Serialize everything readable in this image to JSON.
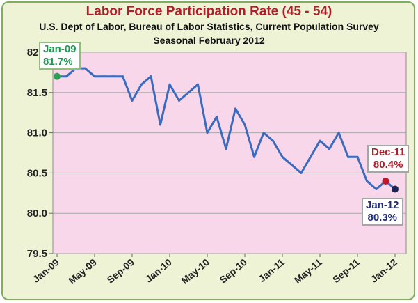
{
  "chart_data": {
    "type": "line",
    "title": "Labor Force Participation Rate  (45 - 54)",
    "subtitle": "U.S. Dept of Labor, Bureau of Labor Statistics, Current Population Survey",
    "subtitle2": "Seasonal February 2012",
    "xlabel": "",
    "ylabel": "",
    "ylim": [
      79.5,
      82.0
    ],
    "yticks": [
      "79.5",
      "80.0",
      "80.5",
      "81.0",
      "81.5",
      "82.0"
    ],
    "xticks": [
      "Jan-09",
      "May-09",
      "Sep-09",
      "Jan-10",
      "May-10",
      "Sep-10",
      "Jan-11",
      "May-11",
      "Sep-11",
      "Jan-12"
    ],
    "grid": true,
    "legend": "none",
    "colors": {
      "line": "#3a6bbf",
      "plot_bg": "#f9d7ea",
      "frame_bg": "#eef3d6",
      "start_marker": "#2aa14e",
      "dec_marker": "#c0182a",
      "jan_marker": "#1c2452"
    },
    "x": [
      "Jan-09",
      "Feb-09",
      "Mar-09",
      "Apr-09",
      "May-09",
      "Jun-09",
      "Jul-09",
      "Aug-09",
      "Sep-09",
      "Oct-09",
      "Nov-09",
      "Dec-09",
      "Jan-10",
      "Feb-10",
      "Mar-10",
      "Apr-10",
      "May-10",
      "Jun-10",
      "Jul-10",
      "Aug-10",
      "Sep-10",
      "Oct-10",
      "Nov-10",
      "Dec-10",
      "Jan-11",
      "Feb-11",
      "Mar-11",
      "Apr-11",
      "May-11",
      "Jun-11",
      "Jul-11",
      "Aug-11",
      "Sep-11",
      "Oct-11",
      "Nov-11",
      "Dec-11",
      "Jan-12"
    ],
    "series": [
      {
        "values": [
          81.7,
          81.7,
          81.8,
          81.8,
          81.7,
          81.7,
          81.7,
          81.7,
          81.4,
          81.6,
          81.7,
          81.1,
          81.6,
          81.4,
          81.5,
          81.6,
          81.0,
          81.2,
          80.8,
          81.3,
          81.1,
          80.7,
          81.0,
          80.9,
          80.7,
          80.6,
          80.5,
          80.7,
          80.9,
          80.8,
          81.0,
          80.7,
          80.7,
          80.4,
          80.3,
          80.4,
          80.3
        ]
      }
    ],
    "annotations": [
      {
        "id": "start",
        "label": "Jan-09",
        "value_label": "81.7%"
      },
      {
        "id": "dec",
        "label": "Dec-11",
        "value_label": "80.4%"
      },
      {
        "id": "jan",
        "label": "Jan-12",
        "value_label": "80.3%"
      }
    ]
  }
}
